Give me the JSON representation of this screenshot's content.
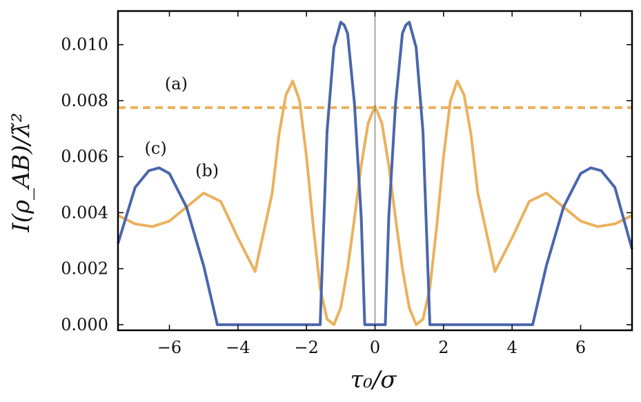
{
  "chart_data": {
    "type": "line",
    "xlabel": "τ₀/σ",
    "ylabel": "I(ρ_AB)/λ̃²",
    "xlim": [
      -7.5,
      7.5
    ],
    "ylim": [
      -0.0002,
      0.0112
    ],
    "x_ticks": [
      -6,
      -4,
      -2,
      0,
      2,
      4,
      6
    ],
    "x_tick_labels": [
      "−6",
      "−4",
      "−2",
      "0",
      "2",
      "4",
      "6"
    ],
    "y_ticks": [
      0.0,
      0.002,
      0.004,
      0.006,
      0.008,
      0.01
    ],
    "y_tick_labels": [
      "0.000",
      "0.002",
      "0.004",
      "0.006",
      "0.008",
      "0.010"
    ],
    "grid": false,
    "series": [
      {
        "name": "(a)",
        "color": "#EBB15E",
        "style": "dashed",
        "x": [
          -7.5,
          7.5
        ],
        "y": [
          0.00775,
          0.00775
        ]
      },
      {
        "name": "(b)",
        "color": "#EBB15E",
        "style": "solid",
        "x": [
          -7.5,
          -7.0,
          -6.5,
          -6.0,
          -5.5,
          -5.0,
          -4.5,
          -4.0,
          -3.5,
          -3.0,
          -2.8,
          -2.6,
          -2.4,
          -2.2,
          -2.0,
          -1.8,
          -1.6,
          -1.4,
          -1.2,
          -1.0,
          -0.8,
          -0.6,
          -0.4,
          -0.2,
          0.0,
          0.2,
          0.4,
          0.6,
          0.8,
          1.0,
          1.2,
          1.4,
          1.6,
          1.8,
          2.0,
          2.2,
          2.4,
          2.6,
          2.8,
          3.0,
          3.5,
          4.0,
          4.5,
          5.0,
          5.5,
          6.0,
          6.5,
          7.0,
          7.5
        ],
        "y": [
          0.0039,
          0.0036,
          0.0035,
          0.0037,
          0.0042,
          0.0047,
          0.0044,
          0.0031,
          0.0019,
          0.0047,
          0.0068,
          0.0082,
          0.0087,
          0.008,
          0.006,
          0.0035,
          0.0013,
          0.0002,
          0.0,
          0.0006,
          0.002,
          0.0038,
          0.0057,
          0.0072,
          0.0078,
          0.0072,
          0.0057,
          0.0038,
          0.002,
          0.0006,
          0.0,
          0.0002,
          0.0013,
          0.0035,
          0.006,
          0.008,
          0.0087,
          0.0082,
          0.0068,
          0.0047,
          0.0019,
          0.0031,
          0.0044,
          0.0047,
          0.0042,
          0.0037,
          0.0035,
          0.0036,
          0.0039
        ]
      },
      {
        "name": "(c)",
        "color": "#4A66AC",
        "style": "solid",
        "x": [
          -7.5,
          -7.0,
          -6.6,
          -6.3,
          -6.0,
          -5.5,
          -5.0,
          -4.6,
          -1.6,
          -1.4,
          -1.2,
          -1.0,
          -0.9,
          -0.8,
          -0.6,
          -0.4,
          -0.3,
          0.3,
          0.4,
          0.6,
          0.8,
          0.9,
          1.0,
          1.2,
          1.4,
          1.6,
          4.6,
          5.0,
          5.5,
          6.0,
          6.3,
          6.6,
          7.0,
          7.5
        ],
        "y": [
          0.0029,
          0.0049,
          0.0055,
          0.0056,
          0.0054,
          0.0042,
          0.0021,
          0.0,
          0.0,
          0.0069,
          0.0099,
          0.0108,
          0.0107,
          0.0104,
          0.0079,
          0.0038,
          0.0,
          0.0,
          0.0038,
          0.0079,
          0.0104,
          0.0107,
          0.0108,
          0.0099,
          0.0069,
          0.0,
          0.0,
          0.0021,
          0.0042,
          0.0054,
          0.0056,
          0.0055,
          0.0049,
          0.0027
        ]
      }
    ],
    "annotations": [
      {
        "text": "(a)",
        "x": -5.8,
        "y": 0.0084
      },
      {
        "text": "(b)",
        "x": -4.9,
        "y": 0.0053
      },
      {
        "text": "(c)",
        "x": -6.4,
        "y": 0.0061
      }
    ]
  }
}
